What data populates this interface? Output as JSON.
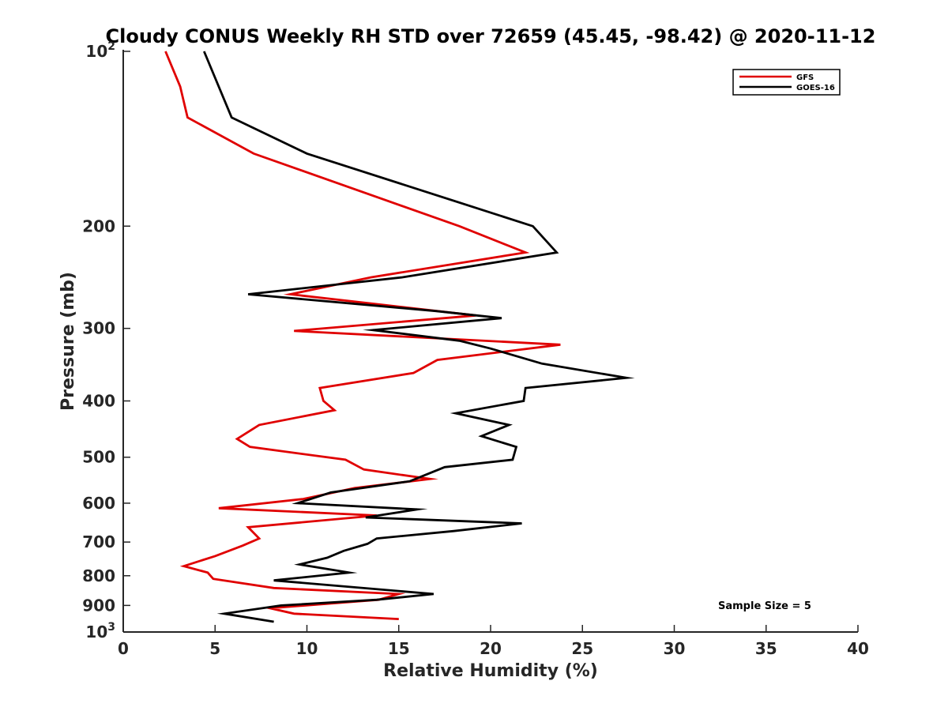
{
  "chart_data": {
    "type": "line",
    "title": "Cloudy CONUS Weekly RH STD over 72659 (45.45, -98.42) @ 2020-11-12",
    "xlabel": "Relative Humidity (%)",
    "ylabel": "Pressure (mb)",
    "xlim": [
      0,
      40
    ],
    "ylim": [
      1000,
      100
    ],
    "y_scale": "log",
    "y_reversed": true,
    "x_ticks": [
      "0",
      "5",
      "10",
      "15",
      "20",
      "25",
      "30",
      "35",
      "40"
    ],
    "y_ticks": [
      {
        "value": 100,
        "base": "10",
        "exp": "2"
      },
      {
        "value": 200,
        "label": "200"
      },
      {
        "value": 300,
        "label": "300"
      },
      {
        "value": 400,
        "label": "400"
      },
      {
        "value": 500,
        "label": "500"
      },
      {
        "value": 600,
        "label": "600"
      },
      {
        "value": 700,
        "label": "700"
      },
      {
        "value": 800,
        "label": "800"
      },
      {
        "value": 900,
        "label": "900"
      },
      {
        "value": 1000,
        "base": "10",
        "exp": "3"
      }
    ],
    "grid": false,
    "legend_position": "top-right",
    "annotation": "Sample Size = 5",
    "series": [
      {
        "name": "GFS",
        "color": "#e00000",
        "x": [
          2.3,
          3.1,
          3.5,
          7.1,
          18.3,
          21.9,
          13.5,
          9.1,
          19.2,
          9.3,
          23.8,
          17.1,
          15.8,
          10.7,
          10.9,
          11.5,
          7.4,
          6.2,
          6.9,
          12.1,
          13.1,
          16.7,
          12.6,
          9.8,
          5.2,
          13.8,
          6.8,
          7.4,
          6.5,
          5.0,
          3.3,
          4.6,
          4.9,
          8.2,
          15.0,
          13.9,
          8.0,
          9.3,
          15.0
        ],
        "y": [
          100,
          115,
          130,
          150,
          200,
          222,
          245,
          262,
          285,
          303,
          320,
          340,
          358,
          380,
          400,
          415,
          440,
          465,
          480,
          505,
          525,
          545,
          565,
          590,
          612,
          630,
          660,
          690,
          710,
          740,
          770,
          790,
          810,
          840,
          860,
          880,
          910,
          930,
          950
        ]
      },
      {
        "name": "GOES-16",
        "color": "#000000",
        "x": [
          4.4,
          5.9,
          10.0,
          22.3,
          23.6,
          15.2,
          6.8,
          17.0,
          20.6,
          13.6,
          18.3,
          20.0,
          22.8,
          27.4,
          21.9,
          21.8,
          18.1,
          21.0,
          19.5,
          21.4,
          21.2,
          17.5,
          15.6,
          11.3,
          9.5,
          16.0,
          13.2,
          21.7,
          18.0,
          13.8,
          13.3,
          12.0,
          11.1,
          9.6,
          12.3,
          8.2,
          16.9,
          13.8,
          8.6,
          5.5,
          8.2
        ],
        "y": [
          100,
          130,
          150,
          200,
          222,
          245,
          262,
          280,
          288,
          302,
          315,
          325,
          345,
          365,
          380,
          400,
          420,
          440,
          460,
          480,
          505,
          520,
          550,
          575,
          600,
          615,
          635,
          650,
          670,
          690,
          705,
          725,
          745,
          765,
          790,
          815,
          860,
          880,
          900,
          930,
          960
        ]
      }
    ]
  }
}
